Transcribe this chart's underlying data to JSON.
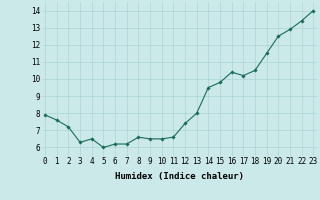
{
  "x": [
    0,
    1,
    2,
    3,
    4,
    5,
    6,
    7,
    8,
    9,
    10,
    11,
    12,
    13,
    14,
    15,
    16,
    17,
    18,
    19,
    20,
    21,
    22,
    23
  ],
  "y": [
    7.9,
    7.6,
    7.2,
    6.3,
    6.5,
    6.0,
    6.2,
    6.2,
    6.6,
    6.5,
    6.5,
    6.6,
    7.4,
    8.0,
    9.5,
    9.8,
    10.4,
    10.2,
    10.5,
    11.5,
    12.5,
    12.9,
    13.4,
    14.0
  ],
  "line_color": "#1a6b5a",
  "marker": "D",
  "marker_size": 1.8,
  "linewidth": 0.8,
  "xlabel": "Humidex (Indice chaleur)",
  "xlabel_fontsize": 6.5,
  "xlabel_fontname": "monospace",
  "ylabel_ticks": [
    6,
    7,
    8,
    9,
    10,
    11,
    12,
    13,
    14
  ],
  "xticks": [
    0,
    1,
    2,
    3,
    4,
    5,
    6,
    7,
    8,
    9,
    10,
    11,
    12,
    13,
    14,
    15,
    16,
    17,
    18,
    19,
    20,
    21,
    22,
    23
  ],
  "ylim": [
    5.5,
    14.5
  ],
  "xlim": [
    -0.3,
    23.3
  ],
  "bg_color": "#cce9e9",
  "grid_color": "#aad4d4",
  "tick_fontsize": 5.5,
  "tick_fontname": "monospace"
}
